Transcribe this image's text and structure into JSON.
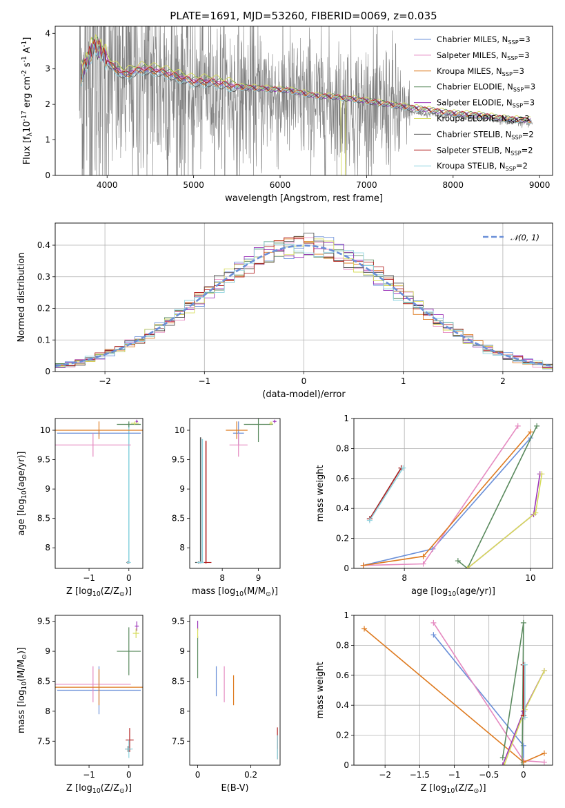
{
  "title": "PLATE=1691, MJD=53260, FIBERID=0069, z=0.035",
  "model_names": [
    "Chabrier MILES, N$_{SSP}$=3",
    "Salpeter MILES, N$_{SSP}$=3",
    "Kroupa MILES, N$_{SSP}$=3",
    "Chabrier ELODIE, N$_{SSP}$=3",
    "Salpeter ELODIE, N$_{SSP}$=3",
    "Kroupa ELODIE, N$_{SSP}$=3",
    "Chabrier STELIB, N$_{SSP}$=2",
    "Salpeter STELIB, N$_{SSP}$=2",
    "Kroupa STELIB, N$_{SSP}$=2"
  ],
  "model_colors": [
    "#6a8fd8",
    "#e589c0",
    "#de7a1f",
    "#5a8a5e",
    "#9b33b8",
    "#d6dc5a",
    "#555555",
    "#b22222",
    "#8fd4e0"
  ],
  "chart_data": [
    {
      "type": "line",
      "panel": "spectrum",
      "title": "PLATE=1691, MJD=53260, FIBERID=0069, z=0.035",
      "xlabel": "wavelength [Angstrom, rest frame]",
      "ylabel": "Flux [f$_λ$10$^{-17}$ erg cm$^{-2}$ s$^{-1}$ A$^{-1}$]",
      "xlim": [
        3400,
        9150
      ],
      "ylim": [
        0,
        4.2
      ],
      "xticks": [
        4000,
        5000,
        6000,
        7000,
        8000,
        9000
      ],
      "yticks": [
        0,
        1,
        2,
        3,
        4
      ],
      "legend": "top-right",
      "data_color": "#808080",
      "data_wavelength_range": [
        3680,
        8920
      ],
      "model_continuum": {
        "x": [
          3700,
          3800,
          3850,
          3950,
          4050,
          4200,
          4400,
          4600,
          4800,
          5000,
          5200,
          5500,
          5800,
          6100,
          6400,
          6700,
          7000,
          7400,
          7700,
          8000,
          8300,
          8600,
          8900
        ],
        "y": [
          2.85,
          3.4,
          3.7,
          3.45,
          3.1,
          2.85,
          3.0,
          2.95,
          2.8,
          2.65,
          2.65,
          2.5,
          2.45,
          2.4,
          2.25,
          2.2,
          2.1,
          1.95,
          1.85,
          1.75,
          1.7,
          1.6,
          1.55
        ]
      }
    },
    {
      "type": "line",
      "panel": "residuals",
      "xlabel": "(data-model)/error",
      "ylabel": "Normed distribution",
      "xlim": [
        -2.5,
        2.5
      ],
      "ylim": [
        0,
        0.47
      ],
      "xticks": [
        -2,
        -1,
        0,
        1,
        2
      ],
      "yticks": [
        0.0,
        0.1,
        0.2,
        0.3,
        0.4
      ],
      "grid": true,
      "legend": "top-right",
      "series": [
        {
          "name": "$\\mathcal{N}(0, 1)$",
          "kind": "dashed normal curve",
          "mu": 0,
          "sigma": 1
        }
      ],
      "histogram_bin_width": 0.1
    },
    {
      "type": "scatter",
      "panel": "age-vs-Z",
      "xlabel": "Z [log$_{10}$(Z/Z$_\\odot$)]",
      "ylabel": "age  [log$_{10}$(age/yr)]",
      "xlim": [
        -1.85,
        0.35
      ],
      "ylim": [
        7.65,
        10.2
      ],
      "xticks": [
        -1,
        0
      ],
      "yticks": [
        8.0,
        8.5,
        9.0,
        9.5,
        10.0
      ],
      "points": [
        {
          "model": 0,
          "x": -0.75,
          "y": 9.95,
          "xerr": 1.05,
          "yerr": 0.05
        },
        {
          "model": 1,
          "x": -0.9,
          "y": 9.75,
          "xerr": 0.95,
          "yerr": 0.2
        },
        {
          "model": 2,
          "x": -0.75,
          "y": 10.0,
          "xerr": 1.1,
          "yerr": 0.15
        },
        {
          "model": 3,
          "x": 0.0,
          "y": 10.1,
          "xerr": 0.3,
          "yerr": 0.05
        },
        {
          "model": 4,
          "x": 0.2,
          "y": 10.15,
          "xerr": 0.03,
          "yerr": 0.03
        },
        {
          "model": 5,
          "x": 0.15,
          "y": 10.12,
          "xerr": 0.1,
          "yerr": 0.03
        },
        {
          "model": 6,
          "x": -0.03,
          "y": 7.75,
          "xerr": 0.03,
          "yerr": 0.02
        },
        {
          "model": 7,
          "x": 0.0,
          "y": 7.75,
          "xerr": 0.03,
          "yerr": 0.02
        },
        {
          "model": 8,
          "x": 0.0,
          "y": 7.75,
          "xerr": 0.05,
          "yerr": 0.02
        }
      ],
      "vlines": [
        {
          "model": 8,
          "x": 0.0,
          "y0": 7.75,
          "y1": 10.12
        }
      ]
    },
    {
      "type": "scatter",
      "panel": "age-vs-mass",
      "xlabel": "mass [log$_{10}$(M/M$_\\odot$)]",
      "ylabel": "",
      "xlim": [
        7.1,
        9.6
      ],
      "ylim": [
        7.65,
        10.2
      ],
      "xticks": [
        8,
        9
      ],
      "yticks": [
        8.0,
        8.5,
        9.0,
        9.5,
        10.0
      ],
      "points": [
        {
          "model": 0,
          "x": 8.45,
          "y": 9.95,
          "xerr": 0.15,
          "yerr": 0.2
        },
        {
          "model": 1,
          "x": 8.45,
          "y": 9.75,
          "xerr": 0.25,
          "yerr": 0.2
        },
        {
          "model": 2,
          "x": 8.4,
          "y": 10.0,
          "xerr": 0.3,
          "yerr": 0.15
        },
        {
          "model": 3,
          "x": 9.0,
          "y": 10.1,
          "xerr": 0.4,
          "yerr": 0.3
        },
        {
          "model": 4,
          "x": 9.45,
          "y": 10.15,
          "xerr": 0.05,
          "yerr": 0.03
        },
        {
          "model": 5,
          "x": 9.35,
          "y": 10.12,
          "xerr": 0.05,
          "yerr": 0.03
        },
        {
          "model": 6,
          "x": 7.35,
          "y": 7.75,
          "xerr": 0.1,
          "yerr": 0.02
        },
        {
          "model": 7,
          "x": 7.55,
          "y": 7.75,
          "xerr": 0.15,
          "yerr": 0.02
        },
        {
          "model": 8,
          "x": 7.4,
          "y": 7.75,
          "xerr": 0.1,
          "yerr": 0.02
        }
      ],
      "vlines": [
        {
          "model": 6,
          "x": 7.4,
          "y0": 7.75,
          "y1": 9.88
        },
        {
          "model": 7,
          "x": 7.55,
          "y0": 7.75,
          "y1": 9.82
        },
        {
          "model": 8,
          "x": 7.45,
          "y0": 7.75,
          "y1": 9.85
        }
      ]
    },
    {
      "type": "line",
      "panel": "massweight-vs-age",
      "xlabel": "age  [log$_{10}$(age/yr)]",
      "ylabel": "mass weight",
      "xlim": [
        7.2,
        10.35
      ],
      "ylim": [
        0,
        1.0
      ],
      "xticks": [
        8,
        10
      ],
      "yticks": [
        0.0,
        0.2,
        0.4,
        0.6,
        0.8,
        1.0
      ],
      "grid": true,
      "series": [
        {
          "model": 0,
          "x": [
            7.35,
            8.45,
            10.0
          ],
          "y": [
            0.02,
            0.13,
            0.87
          ]
        },
        {
          "model": 1,
          "x": [
            7.35,
            8.3,
            9.8
          ],
          "y": [
            0.02,
            0.03,
            0.95
          ]
        },
        {
          "model": 2,
          "x": [
            7.35,
            8.3,
            10.0
          ],
          "y": [
            0.02,
            0.08,
            0.91
          ]
        },
        {
          "model": 3,
          "x": [
            8.85,
            9.0,
            10.1
          ],
          "y": [
            0.05,
            0.0,
            0.95
          ]
        },
        {
          "model": 4,
          "x": [
            9.0,
            10.05,
            10.15
          ],
          "y": [
            0.0,
            0.36,
            0.63
          ]
        },
        {
          "model": 5,
          "x": [
            9.0,
            10.08,
            10.18
          ],
          "y": [
            0.0,
            0.37,
            0.63
          ]
        },
        {
          "model": 6,
          "x": [
            7.45,
            7.95
          ],
          "y": [
            0.33,
            0.67
          ]
        },
        {
          "model": 7,
          "x": [
            7.45,
            7.95
          ],
          "y": [
            0.33,
            0.67
          ]
        },
        {
          "model": 8,
          "x": [
            7.45,
            7.98
          ],
          "y": [
            0.32,
            0.67
          ]
        }
      ]
    },
    {
      "type": "scatter",
      "panel": "mass-vs-Z",
      "xlabel": "Z [log$_{10}$(Z/Z$_\\odot$)]",
      "ylabel": "mass [log$_{10}$(M/M$_\\odot$)]",
      "xlim": [
        -1.85,
        0.35
      ],
      "ylim": [
        7.1,
        9.6
      ],
      "xticks": [
        -1,
        0
      ],
      "yticks": [
        7.5,
        8.0,
        8.5,
        9.0,
        9.5
      ],
      "points": [
        {
          "model": 0,
          "x": -0.75,
          "y": 8.35,
          "xerr": 1.05,
          "yerr": 0.4
        },
        {
          "model": 1,
          "x": -0.9,
          "y": 8.45,
          "xerr": 0.95,
          "yerr": 0.3
        },
        {
          "model": 2,
          "x": -0.75,
          "y": 8.4,
          "xerr": 1.1,
          "yerr": 0.3
        },
        {
          "model": 3,
          "x": 0.0,
          "y": 9.0,
          "xerr": 0.3,
          "yerr": 0.4
        },
        {
          "model": 4,
          "x": 0.2,
          "y": 9.42,
          "xerr": 0.05,
          "yerr": 0.08
        },
        {
          "model": 5,
          "x": 0.18,
          "y": 9.3,
          "xerr": 0.08,
          "yerr": 0.08
        },
        {
          "model": 6,
          "x": -0.02,
          "y": 7.37,
          "xerr": 0.08,
          "yerr": 0.05
        },
        {
          "model": 7,
          "x": 0.02,
          "y": 7.52,
          "xerr": 0.1,
          "yerr": 0.2
        },
        {
          "model": 8,
          "x": 0.0,
          "y": 7.37,
          "xerr": 0.1,
          "yerr": 0.15
        }
      ]
    },
    {
      "type": "scatter",
      "panel": "mass-vs-EBV",
      "xlabel": "E(B-V)",
      "ylabel": "",
      "xlim": [
        -0.03,
        0.31
      ],
      "ylim": [
        7.1,
        9.6
      ],
      "xticks": [
        0.0,
        0.2
      ],
      "yticks": [
        7.5,
        8.0,
        8.5,
        9.0,
        9.5
      ],
      "points": [
        {
          "model": 0,
          "x": 0.07,
          "y": 8.5,
          "yerr": 0.25
        },
        {
          "model": 1,
          "x": 0.1,
          "y": 8.45,
          "yerr": 0.3
        },
        {
          "model": 2,
          "x": 0.135,
          "y": 8.35,
          "yerr": 0.25
        },
        {
          "model": 3,
          "x": 0.0,
          "y": 8.9,
          "yerr": 0.35
        },
        {
          "model": 4,
          "x": 0.0,
          "y": 9.43,
          "yerr": 0.08
        },
        {
          "model": 5,
          "x": 0.0,
          "y": 9.3,
          "yerr": 0.08
        },
        {
          "model": 6,
          "x": 0.3,
          "y": 7.4,
          "yerr": 0.2
        },
        {
          "model": 7,
          "x": 0.3,
          "y": 7.55,
          "yerr": 0.18
        },
        {
          "model": 8,
          "x": 0.3,
          "y": 7.4,
          "yerr": 0.2
        }
      ]
    },
    {
      "type": "line",
      "panel": "massweight-vs-Z",
      "xlabel": "Z [log$_{10}$(Z/Z$_\\odot$)]",
      "ylabel": "mass weight",
      "xlim": [
        -2.45,
        0.42
      ],
      "ylim": [
        0,
        1.0
      ],
      "xticks": [
        -2.0,
        -1.5,
        -1.0,
        -0.5,
        0.0
      ],
      "yticks": [
        0.0,
        0.2,
        0.4,
        0.6,
        0.8,
        1.0
      ],
      "grid": true,
      "series": [
        {
          "model": 0,
          "x": [
            -1.3,
            0.0,
            0.0
          ],
          "y": [
            0.87,
            0.13,
            0.02
          ]
        },
        {
          "model": 1,
          "x": [
            -1.3,
            0.0,
            0.3
          ],
          "y": [
            0.95,
            0.03,
            0.02
          ]
        },
        {
          "model": 2,
          "x": [
            -2.3,
            0.0,
            0.3
          ],
          "y": [
            0.91,
            0.02,
            0.08
          ]
        },
        {
          "model": 3,
          "x": [
            -0.3,
            -0.0,
            -0.02
          ],
          "y": [
            0.05,
            0.95,
            0.0
          ]
        },
        {
          "model": 4,
          "x": [
            -0.3,
            0.0,
            0.3
          ],
          "y": [
            0.0,
            0.36,
            0.63
          ]
        },
        {
          "model": 5,
          "x": [
            -0.28,
            0.02,
            0.3
          ],
          "y": [
            0.0,
            0.37,
            0.63
          ]
        },
        {
          "model": 6,
          "x": [
            0.0,
            0.0
          ],
          "y": [
            0.33,
            0.67
          ]
        },
        {
          "model": 7,
          "x": [
            0.0,
            0.0
          ],
          "y": [
            0.33,
            0.67
          ]
        },
        {
          "model": 8,
          "x": [
            0.02,
            0.02
          ],
          "y": [
            0.32,
            0.67
          ]
        }
      ]
    }
  ]
}
